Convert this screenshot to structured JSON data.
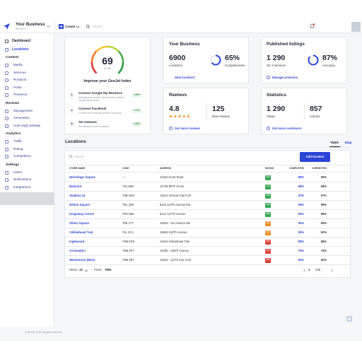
{
  "topbar": {
    "business": "Your Business",
    "project": "PROJECT",
    "create": "Create",
    "search": "Search"
  },
  "sidebar": {
    "main": [
      "Dashboard",
      "Locations"
    ],
    "groups": [
      {
        "title": "Content",
        "items": [
          "Media",
          "Services",
          "Products",
          "Posts",
          "Presence"
        ]
      },
      {
        "title": "Reviews",
        "items": [
          "Management",
          "Generation",
          "Auto-reply settings"
        ]
      },
      {
        "title": "Analytics",
        "items": [
          "Traffic",
          "Rating",
          "Competitors"
        ]
      },
      {
        "title": "Settings",
        "items": [
          "Users",
          "Notifications",
          "Integrations"
        ]
      }
    ]
  },
  "index_card": {
    "score": "69",
    "of": "of 100",
    "title": "Improve your GeoJet Index",
    "steps": [
      {
        "num": "1",
        "title": "Connect Google My Business",
        "desc": "Add data and connect Your Business profile to Google My Business",
        "gain": "+20%"
      },
      {
        "num": "2",
        "title": "Connect Facebook",
        "desc": "Connect Your Business profile to Facebook",
        "gain": "+17%"
      },
      {
        "num": "3",
        "title": "Set statuses",
        "desc": "Set Statuses for your locations",
        "gain": "+15%"
      }
    ]
  },
  "business_card": {
    "title": "Your Business",
    "stat1": {
      "value": "6900",
      "label": "Locations"
    },
    "stat2": {
      "value": "65%",
      "label": "Completeness"
    },
    "link": "New location?"
  },
  "listings_card": {
    "title": "Published listings",
    "stat1": {
      "value": "1 290",
      "label": "On 3 services"
    },
    "stat2": {
      "value": "87%",
      "label": "Accuracy"
    },
    "link": "Manage presence"
  },
  "reviews_card": {
    "title": "Rewievs",
    "stat1": {
      "value": "4.8"
    },
    "stat2": {
      "value": "125",
      "label": "New reviews"
    },
    "link": "Get more reviews"
  },
  "stats_card": {
    "title": "Statistics",
    "stat1": {
      "value": "1 290",
      "label": "Views"
    },
    "stat2": {
      "value": "857",
      "label": "Actions"
    },
    "link": "Get more customers"
  },
  "locations": {
    "title": "Locations",
    "tabs": [
      "Table",
      "Map"
    ],
    "search": "Search",
    "add": "Add location",
    "columns": [
      "STORE NAME",
      "CODE",
      "ADDRESS",
      "RATING",
      "COMPLETED",
      "CORRECTED"
    ],
    "rows": [
      [
        "Hermitage Square",
        "—",
        "11260 Groat Road",
        "5.0",
        "99%",
        "99%"
      ],
      [
        "Belmont",
        "T5A 5B9",
        "12793-50Th St Nw",
        "4.9",
        "98%",
        "98%"
      ],
      [
        "Stadium 11",
        "T5B 4W4",
        "13514 Victoria Trail N.W.",
        "4.8",
        "97%",
        "97%"
      ],
      [
        "Delton Square",
        "T5C 1B9",
        "8132 112Th Avenue Nw",
        "4.8",
        "96%",
        "96%"
      ],
      [
        "Kingsway Corner",
        "T5G 0B6",
        "8141 127Th Avenue",
        "4.6",
        "96%",
        "96%"
      ],
      [
        "Oliver Square",
        "T5E 2T7",
        "10520 - 111 Avenue Nw",
        "4.0",
        "90%",
        "90%"
      ],
      [
        "Yellowhead Trail",
        "T5L 3C2",
        "11660 104Th Avenue",
        "3.9",
        "90%",
        "90%"
      ],
      [
        "Inglewood",
        "T5M 5G8",
        "14204 Yellowhead Trail",
        "3.6",
        "88%",
        "88%"
      ],
      [
        "Coronation",
        "T5M 2P7",
        "12350 - 118Th Avenue",
        "3.1",
        "76%",
        "76%"
      ],
      [
        "Westmount (Reis)",
        "T5M 4E7",
        "14932 - 111Th Ave. N.W.",
        "2.9",
        "60%",
        "60%"
      ]
    ],
    "show_label": "Show:",
    "show_value": "10",
    "from_label": "From:",
    "from_value": "7600",
    "pages": [
      "1",
      "108"
    ]
  },
  "footer": "© GeoJet 2022. All rights reserved."
}
